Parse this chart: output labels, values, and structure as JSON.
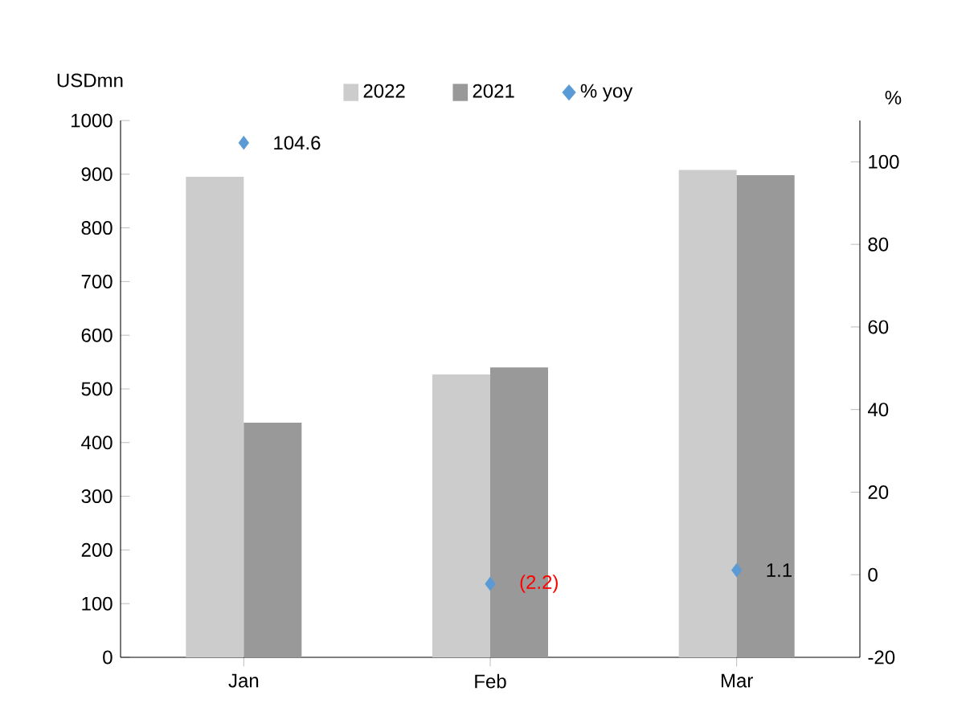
{
  "chart_data": {
    "type": "bar",
    "ylabel": "USDmn",
    "y2label": "%",
    "categories": [
      "Jan",
      "Feb",
      "Mar"
    ],
    "series": [
      {
        "name": "2022",
        "color": "#cccccc",
        "values": [
          895,
          527,
          908
        ]
      },
      {
        "name": "2021",
        "color": "#999999",
        "values": [
          437,
          540,
          898
        ]
      },
      {
        "name": "% yoy",
        "type": "scatter",
        "axis": "y2",
        "color": "#5b9bd5",
        "values": [
          104.6,
          -2.2,
          1.1
        ],
        "value_labels": [
          "104.6",
          "(2.2)",
          "1.1"
        ]
      }
    ],
    "ylim": [
      0,
      1000
    ],
    "yticks": [
      0,
      100,
      200,
      300,
      400,
      500,
      600,
      700,
      800,
      900,
      1000
    ],
    "y2lim": [
      -20,
      110
    ],
    "y2ticks": [
      -20,
      0,
      20,
      40,
      60,
      80,
      100
    ],
    "marker": "diamond",
    "legend": "top",
    "grid": false
  }
}
